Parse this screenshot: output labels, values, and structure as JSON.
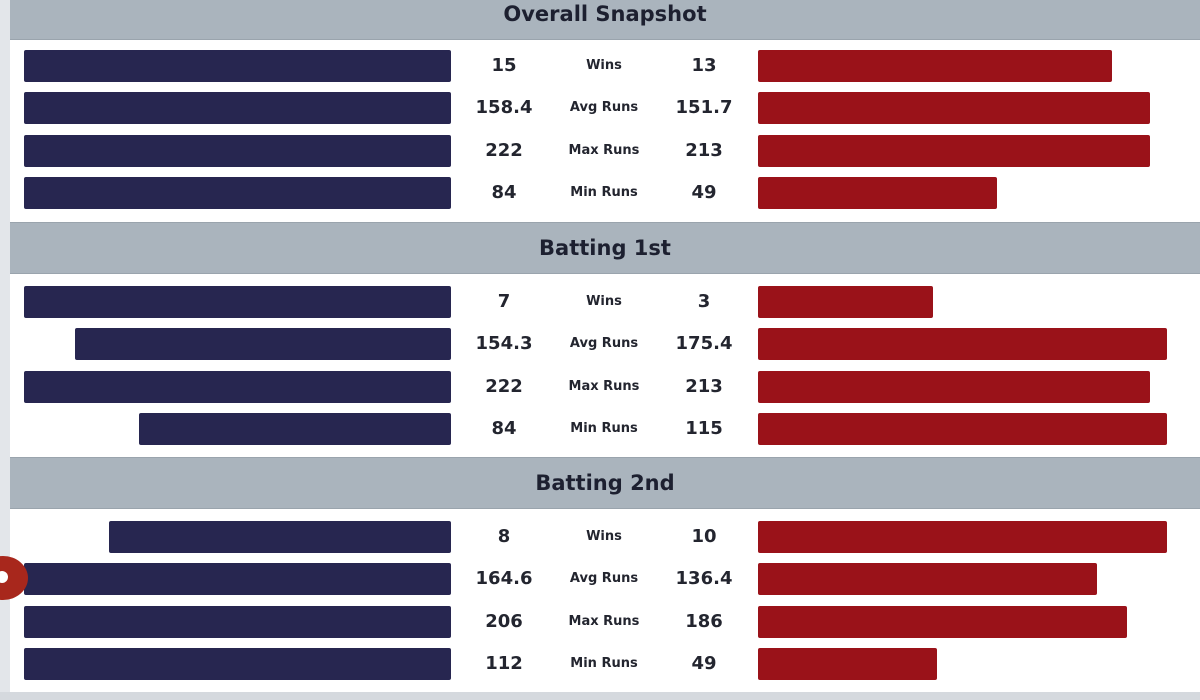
{
  "colors": {
    "team_a_bar": "#272650",
    "team_b_bar": "#9a1219",
    "header_bg": "#aab4bd"
  },
  "chart_data": [
    {
      "type": "bar",
      "title": "Overall Snapshot",
      "categories": [
        "Wins",
        "Avg Runs",
        "Max Runs",
        "Min Runs"
      ],
      "series": [
        {
          "values": [
            15,
            158.4,
            222,
            84
          ]
        },
        {
          "values": [
            13,
            151.7,
            213,
            49
          ]
        }
      ],
      "labels": {
        "left": [
          "15",
          "158.4",
          "222",
          "84"
        ],
        "right": [
          "13",
          "151.7",
          "213",
          "49"
        ]
      }
    },
    {
      "type": "bar",
      "title": "Batting 1st",
      "categories": [
        "Wins",
        "Avg Runs",
        "Max Runs",
        "Min Runs"
      ],
      "series": [
        {
          "values": [
            7,
            154.3,
            222,
            84
          ]
        },
        {
          "values": [
            3,
            175.4,
            213,
            115
          ]
        }
      ],
      "labels": {
        "left": [
          "7",
          "154.3",
          "222",
          "84"
        ],
        "right": [
          "3",
          "175.4",
          "213",
          "115"
        ]
      }
    },
    {
      "type": "bar",
      "title": "Batting 2nd",
      "categories": [
        "Wins",
        "Avg Runs",
        "Max Runs",
        "Min Runs"
      ],
      "series": [
        {
          "values": [
            8,
            164.6,
            206,
            112
          ]
        },
        {
          "values": [
            10,
            136.4,
            186,
            49
          ]
        }
      ],
      "labels": {
        "left": [
          "8",
          "164.6",
          "206",
          "112"
        ],
        "right": [
          "10",
          "136.4",
          "186",
          "49"
        ]
      }
    }
  ]
}
